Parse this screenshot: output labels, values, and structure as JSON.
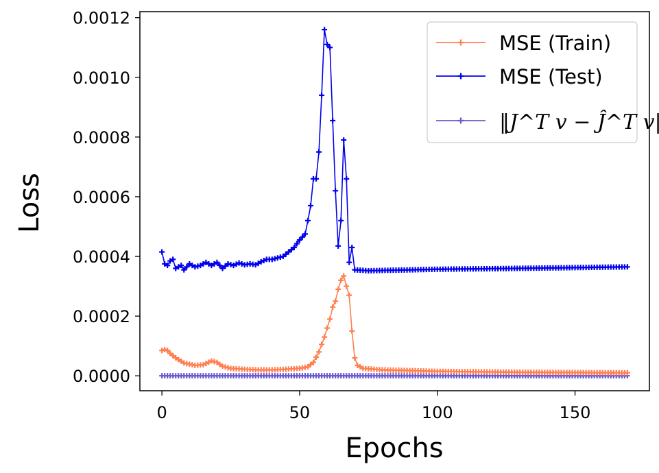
{
  "chart_data": {
    "type": "line",
    "xlabel": "Epochs",
    "ylabel": "Loss",
    "xlim": [
      -8,
      177
    ],
    "ylim": [
      -5e-05,
      0.00122
    ],
    "xticks": [
      0,
      50,
      100,
      150
    ],
    "xtick_labels": [
      "0",
      "50",
      "100",
      "150"
    ],
    "yticks": [
      0,
      0.0002,
      0.0004,
      0.0006,
      0.0008,
      0.001,
      0.0012
    ],
    "ytick_labels": [
      "0.0000",
      "0.0002",
      "0.0004",
      "0.0006",
      "0.0008",
      "0.0010",
      "0.0012"
    ],
    "grid": false,
    "legend_position": "top-right",
    "series": [
      {
        "name": "MSE (Train)",
        "color": "#ff7f50",
        "marker": "plus",
        "key_points": [
          [
            0,
            8.5e-05
          ],
          [
            1,
            8.8e-05
          ],
          [
            2,
            8.5e-05
          ],
          [
            3,
            7.5e-05
          ],
          [
            5,
            6e-05
          ],
          [
            8,
            4.3e-05
          ],
          [
            12,
            3.5e-05
          ],
          [
            15,
            3.7e-05
          ],
          [
            18,
            5e-05
          ],
          [
            20,
            4.5e-05
          ],
          [
            22,
            3.2e-05
          ],
          [
            25,
            2.5e-05
          ],
          [
            30,
            2.2e-05
          ],
          [
            35,
            2e-05
          ],
          [
            40,
            2e-05
          ],
          [
            45,
            2.2e-05
          ],
          [
            50,
            2.5e-05
          ],
          [
            53,
            3e-05
          ],
          [
            55,
            4.5e-05
          ],
          [
            57,
            8e-05
          ],
          [
            59,
            0.00013
          ],
          [
            61,
            0.00019
          ],
          [
            62,
            0.00023
          ],
          [
            63,
            0.00025
          ],
          [
            64,
            0.00029
          ],
          [
            65,
            0.00032
          ],
          [
            66,
            0.000335
          ],
          [
            67,
            0.0003
          ],
          [
            68,
            0.00027
          ],
          [
            69,
            0.00015
          ],
          [
            70,
            6e-05
          ],
          [
            71,
            3.5e-05
          ],
          [
            73,
            2.5e-05
          ],
          [
            80,
            2e-05
          ],
          [
            100,
            1.5e-05
          ],
          [
            130,
            1.2e-05
          ],
          [
            169,
            1e-05
          ]
        ]
      },
      {
        "name": "MSE (Test)",
        "color": "#0000ee",
        "marker": "plus",
        "key_points": [
          [
            0,
            0.000415
          ],
          [
            1,
            0.000375
          ],
          [
            2,
            0.00037
          ],
          [
            3,
            0.000385
          ],
          [
            4,
            0.00039
          ],
          [
            5,
            0.00036
          ],
          [
            6,
            0.000365
          ],
          [
            7,
            0.00037
          ],
          [
            8,
            0.000355
          ],
          [
            10,
            0.000375
          ],
          [
            12,
            0.000365
          ],
          [
            14,
            0.00037
          ],
          [
            16,
            0.00038
          ],
          [
            18,
            0.00037
          ],
          [
            20,
            0.00038
          ],
          [
            22,
            0.00036
          ],
          [
            24,
            0.000375
          ],
          [
            26,
            0.00037
          ],
          [
            28,
            0.000378
          ],
          [
            30,
            0.000372
          ],
          [
            32,
            0.000375
          ],
          [
            34,
            0.000372
          ],
          [
            36,
            0.000382
          ],
          [
            38,
            0.00039
          ],
          [
            40,
            0.00039
          ],
          [
            42,
            0.000395
          ],
          [
            44,
            0.0004
          ],
          [
            46,
            0.000415
          ],
          [
            48,
            0.00043
          ],
          [
            50,
            0.000455
          ],
          [
            52,
            0.000475
          ],
          [
            53,
            0.00052
          ],
          [
            54,
            0.00057
          ],
          [
            55,
            0.00066
          ],
          [
            56,
            0.00066
          ],
          [
            57,
            0.00075
          ],
          [
            58,
            0.00094
          ],
          [
            59,
            0.00116
          ],
          [
            60,
            0.00111
          ],
          [
            61,
            0.0011
          ],
          [
            62,
            0.000855
          ],
          [
            63,
            0.00062
          ],
          [
            64,
            0.000435
          ],
          [
            65,
            0.00052
          ],
          [
            66,
            0.00079
          ],
          [
            67,
            0.00066
          ],
          [
            68,
            0.00038
          ],
          [
            69,
            0.00043
          ],
          [
            70,
            0.000355
          ],
          [
            75,
            0.000352
          ],
          [
            80,
            0.000353
          ],
          [
            100,
            0.000357
          ],
          [
            130,
            0.00036
          ],
          [
            169,
            0.000365
          ]
        ]
      },
      {
        "name": "‖J^T v − Ĵ^T v‖",
        "color": "#6a5acd",
        "marker": "plus",
        "key_points": [
          [
            0,
            1e-07
          ],
          [
            169,
            1e-07
          ]
        ]
      }
    ]
  }
}
